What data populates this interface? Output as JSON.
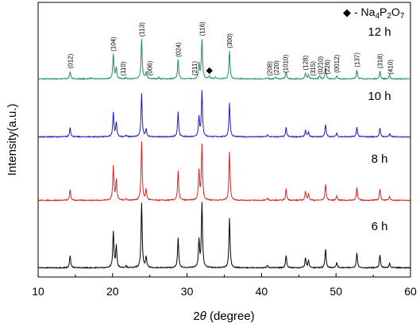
{
  "chart_data": {
    "type": "line",
    "xlabel_prefix": "2",
    "xlabel_theta": "θ",
    "xlabel_suffix": " (degree)",
    "ylabel": "Intensity(a.u.)",
    "xlim": [
      10,
      60
    ],
    "x_ticks": [
      10,
      20,
      30,
      40,
      50,
      60
    ],
    "x_tick_labels": [
      "10",
      "20",
      "30",
      "40",
      "50",
      "60"
    ],
    "grid": false,
    "legend": {
      "marker": "◆",
      "label_prefix": "- Na",
      "sub1": "4",
      "mid": "P",
      "sub2": "2",
      "mid2": "O",
      "sub3": "7",
      "color": "#000000",
      "placement": "top-right"
    },
    "series": [
      {
        "name": "12 h",
        "color": "#1f8a70",
        "baseline": 0.0,
        "peaks": [
          [
            14.3,
            0.12
          ],
          [
            17.0,
            0.015
          ],
          [
            20.1,
            0.38
          ],
          [
            20.5,
            0.18
          ],
          [
            21.8,
            0.02
          ],
          [
            23.9,
            0.62
          ],
          [
            24.5,
            0.1
          ],
          [
            26.2,
            0.02
          ],
          [
            28.8,
            0.3
          ],
          [
            31.6,
            0.24
          ],
          [
            32.0,
            0.62
          ],
          [
            33.0,
            0.04
          ],
          [
            33.8,
            0.03
          ],
          [
            35.7,
            0.44
          ],
          [
            40.8,
            0.02
          ],
          [
            41.9,
            0.03
          ],
          [
            43.3,
            0.11
          ],
          [
            45.9,
            0.09
          ],
          [
            46.3,
            0.06
          ],
          [
            47.8,
            0.05
          ],
          [
            48.6,
            0.17
          ],
          [
            50.1,
            0.05
          ],
          [
            52.8,
            0.14
          ],
          [
            55.9,
            0.12
          ],
          [
            57.2,
            0.06
          ]
        ]
      },
      {
        "name": "10 h",
        "color": "#1c1ccc",
        "baseline": 0.0,
        "peaks": [
          [
            14.3,
            0.15
          ],
          [
            20.1,
            0.37
          ],
          [
            20.5,
            0.22
          ],
          [
            21.8,
            0.02
          ],
          [
            23.9,
            0.66
          ],
          [
            24.5,
            0.12
          ],
          [
            28.8,
            0.38
          ],
          [
            31.6,
            0.3
          ],
          [
            32.0,
            0.7
          ],
          [
            35.7,
            0.52
          ],
          [
            40.8,
            0.03
          ],
          [
            43.3,
            0.14
          ],
          [
            45.9,
            0.1
          ],
          [
            46.3,
            0.07
          ],
          [
            48.6,
            0.19
          ],
          [
            50.1,
            0.06
          ],
          [
            52.8,
            0.15
          ],
          [
            55.9,
            0.13
          ],
          [
            57.2,
            0.05
          ]
        ]
      },
      {
        "name": "8 h",
        "color": "#e02020",
        "baseline": 0.0,
        "peaks": [
          [
            14.3,
            0.13
          ],
          [
            20.1,
            0.42
          ],
          [
            20.5,
            0.25
          ],
          [
            21.8,
            0.02
          ],
          [
            23.9,
            0.72
          ],
          [
            24.5,
            0.13
          ],
          [
            28.8,
            0.36
          ],
          [
            31.6,
            0.36
          ],
          [
            32.0,
            0.68
          ],
          [
            35.7,
            0.6
          ],
          [
            40.8,
            0.03
          ],
          [
            43.3,
            0.14
          ],
          [
            45.9,
            0.11
          ],
          [
            46.3,
            0.08
          ],
          [
            48.6,
            0.2
          ],
          [
            50.1,
            0.06
          ],
          [
            52.8,
            0.16
          ],
          [
            55.9,
            0.14
          ],
          [
            57.2,
            0.05
          ]
        ]
      },
      {
        "name": "6 h",
        "color": "#000000",
        "baseline": 0.0,
        "peaks": [
          [
            14.3,
            0.14
          ],
          [
            20.1,
            0.4
          ],
          [
            20.5,
            0.24
          ],
          [
            21.8,
            0.02
          ],
          [
            23.9,
            0.72
          ],
          [
            24.5,
            0.12
          ],
          [
            28.8,
            0.33
          ],
          [
            31.6,
            0.3
          ],
          [
            32.0,
            0.72
          ],
          [
            35.7,
            0.55
          ],
          [
            40.8,
            0.03
          ],
          [
            43.3,
            0.14
          ],
          [
            45.9,
            0.11
          ],
          [
            46.3,
            0.08
          ],
          [
            48.6,
            0.21
          ],
          [
            50.1,
            0.06
          ],
          [
            52.8,
            0.17
          ],
          [
            55.9,
            0.14
          ],
          [
            57.2,
            0.05
          ]
        ]
      }
    ],
    "hkl_labels": [
      {
        "text": "(012)",
        "x": 14.3
      },
      {
        "text": "(104)",
        "x": 20.1
      },
      {
        "text": "(110)",
        "x": 21.4
      },
      {
        "text": "(113)",
        "x": 23.9
      },
      {
        "text": "(006)",
        "x": 25.0
      },
      {
        "text": "(024)",
        "x": 28.8
      },
      {
        "text": "(211)",
        "x": 31.0
      },
      {
        "text": "(116)",
        "x": 32.0
      },
      {
        "text": "(300)",
        "x": 35.7
      },
      {
        "text": "(208)",
        "x": 41.1
      },
      {
        "text": "(220)",
        "x": 42.0
      },
      {
        "text": "(1010)",
        "x": 43.2
      },
      {
        "text": "(128)",
        "x": 45.9
      },
      {
        "text": "(315)",
        "x": 46.9
      },
      {
        "text": "(0210)",
        "x": 47.9
      },
      {
        "text": "(226)",
        "x": 48.8
      },
      {
        "text": "(0012)",
        "x": 50.1
      },
      {
        "text": "(137)",
        "x": 52.8
      },
      {
        "text": "(318)",
        "x": 55.9
      },
      {
        "text": "(410)",
        "x": 57.3
      }
    ],
    "impurity_marker": {
      "symbol": "◆",
      "x": 33.0
    }
  }
}
